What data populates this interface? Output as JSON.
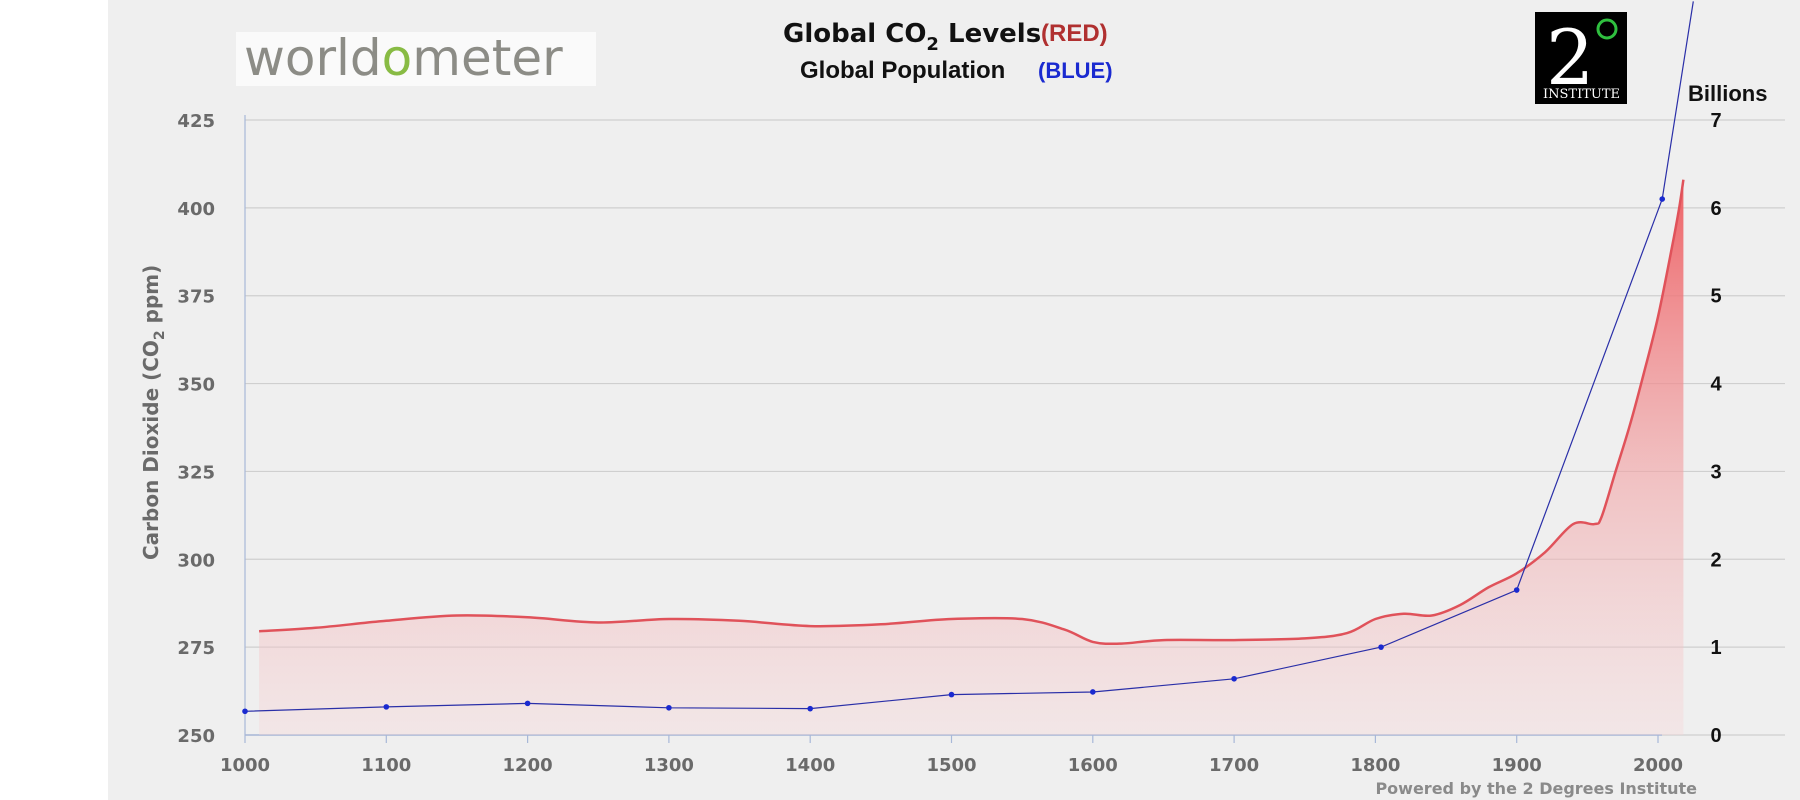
{
  "chart_data": {
    "type": "area",
    "title_main": "Global CO",
    "title_main_sub": "2",
    "title_main_rest": " Levels",
    "title_red_tag": "(RED)",
    "title_secondary": "Global Population",
    "title_blue_tag": "(BLUE)",
    "ylabel": "Carbon Dioxide (CO",
    "ylabel_sub": "2",
    "ylabel_rest": " ppm)",
    "y2label": "Billions",
    "credit": "Powered by the 2 Degrees Institute",
    "x_ticks": [
      "1000",
      "1100",
      "1200",
      "1300",
      "1400",
      "1500",
      "1600",
      "1700",
      "1800",
      "1900",
      "2000"
    ],
    "y_ticks": [
      "250",
      "275",
      "300",
      "325",
      "350",
      "375",
      "400",
      "425"
    ],
    "y2_ticks": [
      "0",
      "1",
      "2",
      "3",
      "4",
      "5",
      "6",
      "7"
    ],
    "xlim": [
      1000,
      2025
    ],
    "ylim": [
      250,
      430
    ],
    "y2lim": [
      0,
      7
    ],
    "grid": true,
    "series": [
      {
        "name": "Global CO2 Levels",
        "color": "#e0525a",
        "axis": "left",
        "x": [
          1010,
          1050,
          1100,
          1150,
          1200,
          1250,
          1300,
          1350,
          1400,
          1450,
          1500,
          1550,
          1580,
          1600,
          1620,
          1650,
          1700,
          1750,
          1780,
          1800,
          1820,
          1840,
          1860,
          1880,
          1900,
          1920,
          1940,
          1955,
          1960,
          1970,
          1980,
          1990,
          2000,
          2010,
          2015,
          2018
        ],
        "values": [
          279.5,
          280.5,
          282.5,
          284,
          283.5,
          282,
          283,
          282.5,
          281,
          281.5,
          283,
          283,
          280,
          276.5,
          276,
          277,
          277,
          277.5,
          279,
          283,
          284.5,
          284,
          287,
          292,
          296,
          302,
          310,
          310,
          312,
          325,
          338,
          353,
          369,
          389,
          400,
          408
        ]
      },
      {
        "name": "Global Population",
        "color": "#2a2fa8",
        "axis": "right",
        "x": [
          1000,
          1100,
          1200,
          1300,
          1400,
          1500,
          1600,
          1700,
          1804,
          1900,
          2003,
          2025
        ],
        "values": [
          0.27,
          0.32,
          0.36,
          0.31,
          0.3,
          0.46,
          0.49,
          0.64,
          1.0,
          1.65,
          6.1,
          8.35
        ]
      }
    ]
  },
  "logos": {
    "worldometer_pre": "world",
    "worldometer_o": "o",
    "worldometer_post": "meter",
    "institute_big": "2",
    "institute_label": "INSTITUTE"
  }
}
